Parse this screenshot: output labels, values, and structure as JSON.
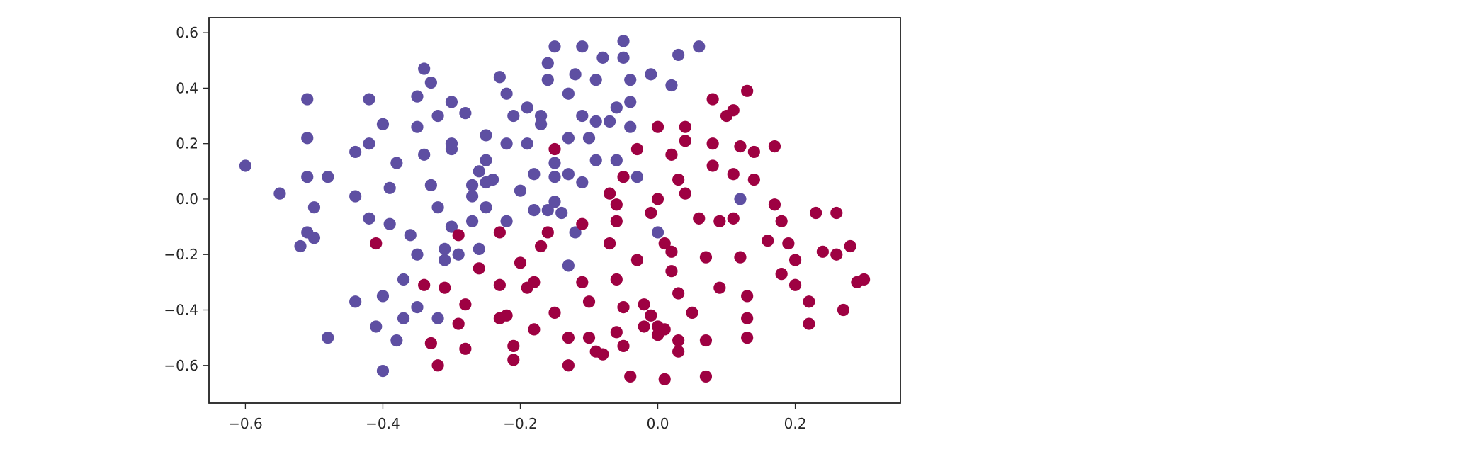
{
  "chart_data": {
    "type": "scatter",
    "title": "",
    "xlabel": "",
    "ylabel": "",
    "xlim": [
      -0.653,
      0.353
    ],
    "ylim": [
      -0.736,
      0.654
    ],
    "xticks": [
      -0.6,
      -0.4,
      -0.2,
      0.0,
      0.2
    ],
    "xtick_labels": [
      "−0.6",
      "−0.4",
      "−0.2",
      "0.0",
      "0.2"
    ],
    "yticks": [
      0.6,
      0.4,
      0.2,
      0.0,
      -0.2,
      -0.4,
      -0.6
    ],
    "ytick_labels": [
      "0.6",
      "0.4",
      "0.2",
      "0.0",
      "−0.2",
      "−0.4",
      "−0.6"
    ],
    "grid": false,
    "legend": false,
    "colors": {
      "class_a": "#5e4fa2",
      "class_b": "#9e0142",
      "axis": "#262626",
      "background": "#ffffff"
    },
    "series": [
      {
        "color": "#5e4fa2",
        "points": [
          [
            -0.6,
            0.12
          ],
          [
            -0.55,
            0.02
          ],
          [
            -0.52,
            -0.17
          ],
          [
            -0.51,
            -0.12
          ],
          [
            -0.5,
            -0.14
          ],
          [
            -0.51,
            0.08
          ],
          [
            -0.51,
            0.22
          ],
          [
            -0.51,
            0.36
          ],
          [
            -0.5,
            -0.03
          ],
          [
            -0.48,
            0.08
          ],
          [
            -0.48,
            -0.5
          ],
          [
            -0.44,
            0.01
          ],
          [
            -0.44,
            0.17
          ],
          [
            -0.44,
            -0.37
          ],
          [
            -0.42,
            0.2
          ],
          [
            -0.42,
            0.36
          ],
          [
            -0.42,
            -0.07
          ],
          [
            -0.41,
            -0.46
          ],
          [
            -0.4,
            0.27
          ],
          [
            -0.4,
            -0.62
          ],
          [
            -0.4,
            -0.35
          ],
          [
            -0.39,
            0.04
          ],
          [
            -0.39,
            -0.09
          ],
          [
            -0.38,
            -0.51
          ],
          [
            -0.38,
            0.13
          ],
          [
            -0.37,
            -0.29
          ],
          [
            -0.37,
            -0.43
          ],
          [
            -0.36,
            -0.13
          ],
          [
            -0.35,
            -0.2
          ],
          [
            -0.35,
            -0.39
          ],
          [
            -0.35,
            0.37
          ],
          [
            -0.35,
            0.26
          ],
          [
            -0.34,
            0.47
          ],
          [
            -0.34,
            0.16
          ],
          [
            -0.33,
            0.42
          ],
          [
            -0.33,
            0.05
          ],
          [
            -0.32,
            0.3
          ],
          [
            -0.32,
            -0.03
          ],
          [
            -0.32,
            -0.43
          ],
          [
            -0.31,
            -0.18
          ],
          [
            -0.31,
            -0.22
          ],
          [
            -0.3,
            0.18
          ],
          [
            -0.3,
            0.2
          ],
          [
            -0.3,
            -0.1
          ],
          [
            -0.3,
            0.35
          ],
          [
            -0.29,
            -0.2
          ],
          [
            -0.28,
            0.31
          ],
          [
            -0.27,
            0.01
          ],
          [
            -0.27,
            0.05
          ],
          [
            -0.27,
            -0.08
          ],
          [
            -0.26,
            0.1
          ],
          [
            -0.26,
            -0.18
          ],
          [
            -0.25,
            0.23
          ],
          [
            -0.25,
            0.14
          ],
          [
            -0.25,
            0.06
          ],
          [
            -0.25,
            -0.03
          ],
          [
            -0.24,
            0.07
          ],
          [
            -0.23,
            0.44
          ],
          [
            -0.22,
            0.38
          ],
          [
            -0.22,
            0.2
          ],
          [
            -0.22,
            -0.08
          ],
          [
            -0.21,
            0.3
          ],
          [
            -0.2,
            0.03
          ],
          [
            -0.19,
            0.33
          ],
          [
            -0.19,
            0.2
          ],
          [
            -0.18,
            0.09
          ],
          [
            -0.18,
            -0.04
          ],
          [
            -0.17,
            0.3
          ],
          [
            -0.17,
            0.27
          ],
          [
            -0.16,
            0.49
          ],
          [
            -0.16,
            0.43
          ],
          [
            -0.16,
            -0.04
          ],
          [
            -0.15,
            -0.01
          ],
          [
            -0.15,
            0.13
          ],
          [
            -0.15,
            0.08
          ],
          [
            -0.15,
            0.55
          ],
          [
            -0.14,
            -0.05
          ],
          [
            -0.13,
            0.38
          ],
          [
            -0.13,
            0.22
          ],
          [
            -0.13,
            0.09
          ],
          [
            -0.13,
            -0.24
          ],
          [
            -0.12,
            0.45
          ],
          [
            -0.12,
            -0.12
          ],
          [
            -0.11,
            0.06
          ],
          [
            -0.11,
            0.55
          ],
          [
            -0.11,
            0.3
          ],
          [
            -0.1,
            0.22
          ],
          [
            -0.09,
            0.43
          ],
          [
            -0.09,
            0.14
          ],
          [
            -0.09,
            0.28
          ],
          [
            -0.08,
            0.51
          ],
          [
            -0.07,
            0.28
          ],
          [
            -0.06,
            0.33
          ],
          [
            -0.06,
            0.14
          ],
          [
            -0.05,
            0.57
          ],
          [
            -0.05,
            0.51
          ],
          [
            -0.04,
            0.43
          ],
          [
            -0.04,
            0.35
          ],
          [
            -0.04,
            0.26
          ],
          [
            -0.03,
            0.08
          ],
          [
            -0.01,
            0.45
          ],
          [
            0.0,
            -0.12
          ],
          [
            0.02,
            0.41
          ],
          [
            0.03,
            0.52
          ],
          [
            0.06,
            0.55
          ],
          [
            0.12,
            0.0
          ]
        ]
      },
      {
        "color": "#9e0142",
        "points": [
          [
            -0.41,
            -0.16
          ],
          [
            -0.34,
            -0.31
          ],
          [
            -0.33,
            -0.52
          ],
          [
            -0.32,
            -0.6
          ],
          [
            -0.31,
            -0.32
          ],
          [
            -0.29,
            -0.13
          ],
          [
            -0.29,
            -0.45
          ],
          [
            -0.28,
            -0.38
          ],
          [
            -0.28,
            -0.54
          ],
          [
            -0.26,
            -0.25
          ],
          [
            -0.23,
            -0.12
          ],
          [
            -0.23,
            -0.31
          ],
          [
            -0.23,
            -0.43
          ],
          [
            -0.22,
            -0.42
          ],
          [
            -0.21,
            -0.53
          ],
          [
            -0.21,
            -0.58
          ],
          [
            -0.2,
            -0.23
          ],
          [
            -0.19,
            -0.32
          ],
          [
            -0.18,
            -0.3
          ],
          [
            -0.18,
            -0.47
          ],
          [
            -0.17,
            -0.17
          ],
          [
            -0.16,
            -0.12
          ],
          [
            -0.15,
            0.18
          ],
          [
            -0.15,
            -0.41
          ],
          [
            -0.13,
            -0.5
          ],
          [
            -0.13,
            -0.6
          ],
          [
            -0.11,
            -0.09
          ],
          [
            -0.11,
            -0.3
          ],
          [
            -0.1,
            -0.37
          ],
          [
            -0.1,
            -0.5
          ],
          [
            -0.09,
            -0.55
          ],
          [
            -0.08,
            -0.56
          ],
          [
            -0.07,
            0.02
          ],
          [
            -0.07,
            -0.16
          ],
          [
            -0.06,
            -0.08
          ],
          [
            -0.06,
            -0.29
          ],
          [
            -0.06,
            -0.48
          ],
          [
            -0.06,
            -0.02
          ],
          [
            -0.05,
            0.08
          ],
          [
            -0.05,
            -0.39
          ],
          [
            -0.05,
            -0.53
          ],
          [
            -0.04,
            -0.64
          ],
          [
            -0.03,
            -0.22
          ],
          [
            -0.03,
            0.18
          ],
          [
            -0.02,
            -0.46
          ],
          [
            -0.02,
            -0.38
          ],
          [
            -0.01,
            -0.42
          ],
          [
            -0.01,
            -0.05
          ],
          [
            0.0,
            -0.49
          ],
          [
            0.0,
            -0.46
          ],
          [
            0.0,
            0.26
          ],
          [
            0.0,
            0.0
          ],
          [
            0.01,
            -0.47
          ],
          [
            0.01,
            -0.16
          ],
          [
            0.01,
            -0.65
          ],
          [
            0.02,
            0.16
          ],
          [
            0.02,
            -0.26
          ],
          [
            0.02,
            -0.19
          ],
          [
            0.03,
            -0.51
          ],
          [
            0.03,
            -0.55
          ],
          [
            0.03,
            -0.34
          ],
          [
            0.03,
            0.07
          ],
          [
            0.04,
            0.02
          ],
          [
            0.04,
            0.21
          ],
          [
            0.04,
            0.26
          ],
          [
            0.05,
            -0.41
          ],
          [
            0.06,
            -0.07
          ],
          [
            0.07,
            -0.21
          ],
          [
            0.07,
            -0.51
          ],
          [
            0.07,
            -0.64
          ],
          [
            0.08,
            0.36
          ],
          [
            0.08,
            0.2
          ],
          [
            0.08,
            0.12
          ],
          [
            0.09,
            -0.08
          ],
          [
            0.09,
            -0.32
          ],
          [
            0.1,
            0.3
          ],
          [
            0.11,
            0.32
          ],
          [
            0.11,
            0.09
          ],
          [
            0.11,
            -0.07
          ],
          [
            0.12,
            0.19
          ],
          [
            0.12,
            -0.21
          ],
          [
            0.13,
            0.39
          ],
          [
            0.13,
            -0.35
          ],
          [
            0.13,
            -0.43
          ],
          [
            0.13,
            -0.5
          ],
          [
            0.14,
            0.07
          ],
          [
            0.14,
            0.17
          ],
          [
            0.16,
            -0.15
          ],
          [
            0.17,
            -0.02
          ],
          [
            0.17,
            0.19
          ],
          [
            0.18,
            -0.27
          ],
          [
            0.18,
            -0.08
          ],
          [
            0.19,
            -0.16
          ],
          [
            0.2,
            -0.22
          ],
          [
            0.2,
            -0.31
          ],
          [
            0.22,
            -0.37
          ],
          [
            0.22,
            -0.45
          ],
          [
            0.23,
            -0.05
          ],
          [
            0.24,
            -0.19
          ],
          [
            0.26,
            -0.05
          ],
          [
            0.26,
            -0.2
          ],
          [
            0.27,
            -0.4
          ],
          [
            0.28,
            -0.17
          ],
          [
            0.29,
            -0.3
          ],
          [
            0.3,
            -0.29
          ]
        ]
      }
    ]
  }
}
